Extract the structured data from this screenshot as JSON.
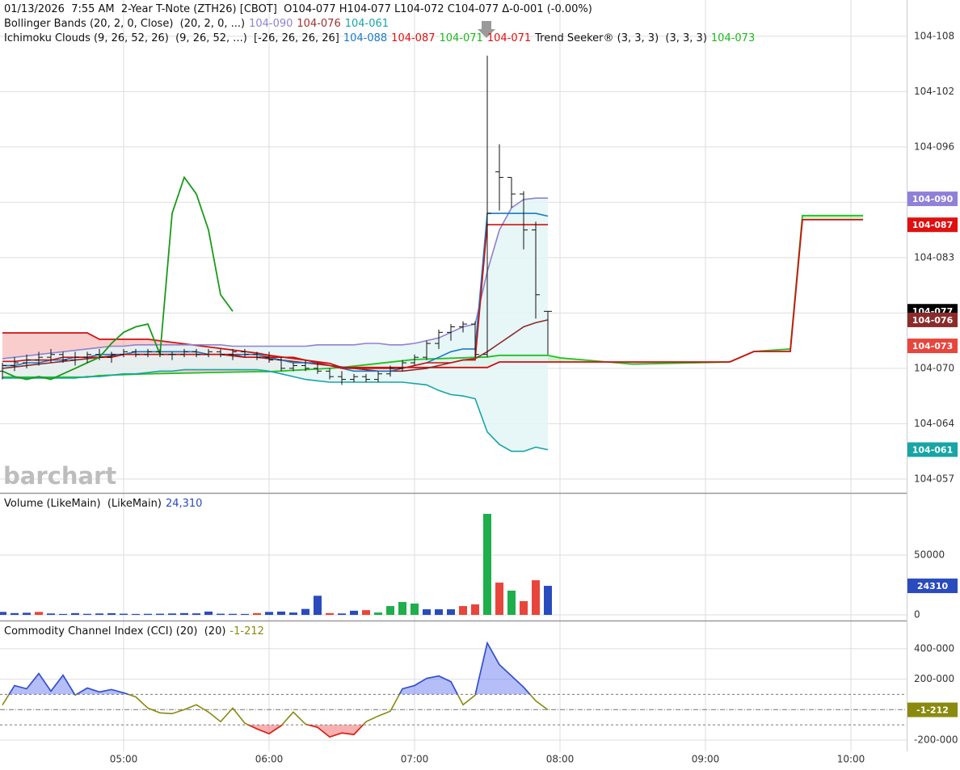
{
  "chart_data": [
    {
      "type": "ohlc",
      "legend": [
        [
          {
            "text": "01/13/2026  7:55 AM  2-Year T-Note (ZTH26) [CBOT]  O104-077 H104-077 L104-072 C104-077 Δ-0-001 (-0.00%)",
            "color": "#111111"
          }
        ],
        [
          {
            "text": "Bollinger Bands (20, 2, 0, Close)  (20, 2, 0, ...)",
            "color": "#111111"
          },
          {
            "text": "104-090",
            "color": "#8e82d0"
          },
          {
            "text": "104-076",
            "color": "#a03030"
          },
          {
            "text": "104-061",
            "color": "#17a5a5"
          }
        ],
        [
          {
            "text": "Ichimoku Clouds (9, 26, 52, 26)  (9, 26, 52, ...)  [-26, 26, 26, 26]",
            "color": "#111111"
          },
          {
            "text": "104-088",
            "color": "#1a7ac4"
          },
          {
            "text": "104-087",
            "color": "#e01010"
          },
          {
            "text": "104-071",
            "color": "#1cb81c"
          },
          {
            "text": "104-071",
            "color": "#e01010"
          },
          {
            "text": "Trend Seeker® (3, 3, 3)  (3, 3, 3)",
            "color": "#111111"
          },
          {
            "text": "104-073",
            "color": "#1cb81c"
          }
        ]
      ],
      "watermark": "barchart",
      "x": [
        "04:10",
        "04:15",
        "04:20",
        "04:25",
        "04:30",
        "04:35",
        "04:40",
        "04:45",
        "04:50",
        "04:55",
        "05:00",
        "05:05",
        "05:10",
        "05:15",
        "05:20",
        "05:25",
        "05:30",
        "05:35",
        "05:40",
        "05:45",
        "05:50",
        "05:55",
        "06:00",
        "06:05",
        "06:10",
        "06:15",
        "06:20",
        "06:25",
        "06:30",
        "06:35",
        "06:40",
        "06:45",
        "06:50",
        "06:55",
        "07:00",
        "07:05",
        "07:10",
        "07:15",
        "07:20",
        "07:25",
        "07:30",
        "07:35",
        "07:40",
        "07:45",
        "07:50",
        "07:55"
      ],
      "open": [
        104.219,
        104.221,
        104.222,
        104.223,
        104.224,
        104.225,
        104.223,
        104.224,
        104.225,
        104.224,
        104.225,
        104.226,
        104.225,
        104.226,
        104.225,
        104.225,
        104.226,
        104.225,
        104.226,
        104.225,
        104.226,
        104.225,
        104.224,
        104.223,
        104.22,
        104.221,
        104.22,
        104.219,
        104.217,
        104.216,
        104.217,
        104.216,
        104.218,
        104.22,
        104.222,
        104.224,
        104.229,
        104.233,
        104.235,
        104.236,
        104.225,
        104.291,
        104.289,
        104.283,
        104.27,
        104.2406
      ],
      "high": [
        104.222,
        104.224,
        104.225,
        104.226,
        104.227,
        104.226,
        104.226,
        104.226,
        104.227,
        104.226,
        104.227,
        104.227,
        104.227,
        104.227,
        104.226,
        104.227,
        104.227,
        104.227,
        104.227,
        104.227,
        104.227,
        104.226,
        104.226,
        104.224,
        104.222,
        104.223,
        104.222,
        104.22,
        104.219,
        104.218,
        104.218,
        104.219,
        104.221,
        104.223,
        104.225,
        104.23,
        104.234,
        104.236,
        104.237,
        104.237,
        104.333,
        104.301,
        104.289,
        104.284,
        104.273,
        104.2406
      ],
      "low": [
        104.216,
        104.219,
        104.22,
        104.221,
        104.222,
        104.222,
        104.221,
        104.222,
        104.223,
        104.222,
        104.224,
        104.224,
        104.224,
        104.224,
        104.223,
        104.224,
        104.224,
        104.224,
        104.224,
        104.223,
        104.224,
        104.223,
        104.222,
        104.219,
        104.219,
        104.219,
        104.218,
        104.216,
        104.214,
        104.215,
        104.215,
        104.215,
        104.217,
        104.219,
        104.221,
        104.223,
        104.227,
        104.23,
        104.233,
        104.224,
        104.224,
        104.277,
        104.278,
        104.263,
        104.238,
        104.225
      ],
      "close": [
        104.221,
        104.222,
        104.223,
        104.224,
        104.225,
        104.223,
        104.224,
        104.225,
        104.224,
        104.225,
        104.226,
        104.225,
        104.226,
        104.225,
        104.225,
        104.226,
        104.225,
        104.226,
        104.225,
        104.226,
        104.225,
        104.224,
        104.223,
        104.22,
        104.221,
        104.22,
        104.219,
        104.217,
        104.216,
        104.217,
        104.216,
        104.218,
        104.22,
        104.222,
        104.224,
        104.229,
        104.233,
        104.235,
        104.236,
        104.225,
        104.276,
        104.289,
        104.283,
        104.27,
        104.2466,
        104.2406
      ],
      "bar_color": "#111111",
      "series": [
        {
          "color": "#8e82d0",
          "values": [
            104.2235,
            104.224,
            104.2245,
            104.225,
            104.2255,
            104.226,
            104.2265,
            104.227,
            104.2275,
            104.228,
            104.228,
            104.2285,
            104.2285,
            104.2285,
            104.2285,
            104.2285,
            104.2285,
            104.2285,
            104.2285,
            104.228,
            104.228,
            104.228,
            104.228,
            104.228,
            104.228,
            104.228,
            104.2285,
            104.2285,
            104.2285,
            104.2285,
            104.229,
            104.229,
            104.2285,
            104.2285,
            104.229,
            104.23,
            104.231,
            104.233,
            104.235,
            104.236,
            104.255,
            104.27,
            104.278,
            104.281,
            104.2815,
            104.2815
          ]
        },
        {
          "color": "#8b2b2b",
          "values": [
            104.22,
            104.2205,
            104.221,
            104.2215,
            104.222,
            104.2225,
            104.223,
            104.2235,
            104.224,
            104.2245,
            104.225,
            104.225,
            104.225,
            104.225,
            104.225,
            104.225,
            104.225,
            104.225,
            104.225,
            104.2245,
            104.224,
            104.224,
            104.2235,
            104.223,
            104.2225,
            104.222,
            104.2215,
            104.221,
            104.2205,
            104.22,
            104.2195,
            104.219,
            104.219,
            104.219,
            104.2195,
            104.22,
            104.221,
            104.222,
            104.223,
            104.2235,
            104.226,
            104.229,
            104.232,
            104.235,
            104.2365,
            104.2375
          ]
        },
        {
          "color": "#17a5a5",
          "values": [
            104.2165,
            104.2165,
            104.2165,
            104.2165,
            104.2165,
            104.2165,
            104.2165,
            104.217,
            104.217,
            104.2175,
            104.218,
            104.218,
            104.2185,
            104.219,
            104.219,
            104.2195,
            104.2195,
            104.2195,
            104.2195,
            104.2195,
            104.2195,
            104.2195,
            104.219,
            104.218,
            104.217,
            104.216,
            104.2155,
            104.215,
            104.215,
            104.215,
            104.215,
            104.215,
            104.215,
            104.215,
            104.2145,
            104.214,
            104.212,
            104.2105,
            104.21,
            104.209,
            104.197,
            104.1925,
            104.19,
            104.19,
            104.1915,
            104.1906
          ]
        },
        {
          "color": "#1a7ac4",
          "values": [
            104.221,
            104.221,
            104.222,
            104.222,
            104.223,
            104.223,
            104.224,
            104.224,
            104.225,
            104.225,
            104.225,
            104.226,
            104.226,
            104.226,
            104.226,
            104.226,
            104.226,
            104.225,
            104.225,
            104.225,
            104.225,
            104.225,
            104.224,
            104.223,
            104.222,
            104.222,
            104.222,
            104.221,
            104.22,
            104.219,
            104.219,
            104.219,
            104.219,
            104.22,
            104.221,
            104.222,
            104.224,
            104.226,
            104.227,
            104.227,
            104.276,
            104.276,
            104.276,
            104.276,
            104.276,
            104.275
          ]
        },
        {
          "color": "#d01010",
          "values": [
            104.2225,
            104.2225,
            104.223,
            104.223,
            104.223,
            104.224,
            104.224,
            104.224,
            104.224,
            104.224,
            104.225,
            104.225,
            104.225,
            104.225,
            104.225,
            104.225,
            104.225,
            104.225,
            104.225,
            104.225,
            104.224,
            104.224,
            104.224,
            104.224,
            104.224,
            104.223,
            104.222,
            104.221,
            104.22,
            104.22,
            104.22,
            104.22,
            104.22,
            104.22,
            104.221,
            104.222,
            104.222,
            104.222,
            104.223,
            104.223,
            104.2719,
            104.2719,
            104.2719,
            104.2719,
            104.2719,
            104.2719
          ]
        }
      ],
      "band_fill": "#e3f4f4",
      "lag": 26,
      "lag_color": "#1a9a1a",
      "cloud": {
        "x": [
          "04:10",
          "04:45",
          "04:50",
          "05:10",
          "05:55",
          "06:00",
          "06:25",
          "06:30",
          "07:00",
          "07:30",
          "07:35",
          "07:55",
          "08:00",
          "08:30",
          "09:10",
          "09:20",
          "09:35",
          "09:40",
          "10:05"
        ],
        "a": [
          104.2168,
          104.2168,
          104.2174,
          104.218,
          104.2188,
          104.2188,
          104.22,
          104.2203,
          104.2232,
          104.2241,
          104.2247,
          104.2247,
          104.2238,
          104.2215,
          104.2223,
          104.2261,
          104.227,
          104.2752,
          104.2752
        ],
        "b": [
          104.2328,
          104.2328,
          104.2305,
          104.2305,
          104.2255,
          104.2247,
          104.2218,
          104.2203,
          104.2203,
          104.2203,
          104.2223,
          104.2223,
          104.2223,
          104.2223,
          104.2223,
          104.2261,
          104.2261,
          104.2737,
          104.2737
        ],
        "a_color": "#22c022",
        "b_color": "#d01010",
        "up_fill": "rgba(60,210,60,0.28)",
        "down_fill": "rgba(240,90,90,0.3)"
      },
      "tags": [
        {
          "value": 104.28125,
          "label": "104-090",
          "color": "#9080d8"
        },
        {
          "value": 104.271875,
          "label": "104-087",
          "color": "#e01010"
        },
        {
          "value": 104.240625,
          "label": "104-077",
          "color": "#000000"
        },
        {
          "value": 104.2375,
          "label": "104-076",
          "color": "#8b2b2b"
        },
        {
          "value": 104.228125,
          "label": "104-073",
          "color": "#e8453c"
        },
        {
          "value": 104.190625,
          "label": "104-061",
          "color": "#17a5a5"
        }
      ],
      "xlim": [
        "04:09",
        "10:23"
      ],
      "ylim": [
        104.175,
        104.3531
      ],
      "yticks": [
        {
          "value": 104.18,
          "label": "104-057"
        },
        {
          "value": 104.2,
          "label": "104-064"
        },
        {
          "value": 104.22,
          "label": "104-070"
        },
        {
          "value": 104.24,
          "label": "104-077"
        },
        {
          "value": 104.26,
          "label": "104-083"
        },
        {
          "value": 104.28,
          "label": "104-090"
        },
        {
          "value": 104.3,
          "label": "104-096"
        },
        {
          "value": 104.32,
          "label": "104-102"
        },
        {
          "value": 104.34,
          "label": "104-108"
        }
      ],
      "grid": true
    },
    {
      "type": "bar",
      "legend": [
        [
          {
            "text": "Volume (LikeMain)  (LikeMain)",
            "color": "#111111"
          },
          {
            "text": "24,310",
            "color": "#2a4bbd"
          }
        ]
      ],
      "x": [
        "04:10",
        "04:15",
        "04:20",
        "04:25",
        "04:30",
        "04:35",
        "04:40",
        "04:45",
        "04:50",
        "04:55",
        "05:00",
        "05:05",
        "05:10",
        "05:15",
        "05:20",
        "05:25",
        "05:30",
        "05:35",
        "05:40",
        "05:45",
        "05:50",
        "05:55",
        "06:00",
        "06:05",
        "06:10",
        "06:15",
        "06:20",
        "06:25",
        "06:30",
        "06:35",
        "06:40",
        "06:45",
        "06:50",
        "06:55",
        "07:00",
        "07:05",
        "07:10",
        "07:15",
        "07:20",
        "07:25",
        "07:30",
        "07:35",
        "07:40",
        "07:45",
        "07:50",
        "07:55"
      ],
      "values": [
        2500,
        1500,
        1800,
        2500,
        1200,
        800,
        1500,
        900,
        1200,
        1400,
        1000,
        800,
        900,
        1000,
        1200,
        1500,
        1300,
        2800,
        1000,
        900,
        800,
        1500,
        2500,
        2800,
        2000,
        5000,
        16000,
        1500,
        1200,
        3500,
        4000,
        2000,
        7400,
        10800,
        9500,
        4700,
        4700,
        4700,
        7400,
        8800,
        84500,
        27000,
        20300,
        11500,
        29000,
        24310
      ],
      "bar_colors": [
        "#2a4bbd",
        "#2a4bbd",
        "#2a4bbd",
        "#e8453c",
        "#2a4bbd",
        "#2a4bbd",
        "#2a4bbd",
        "#2a4bbd",
        "#2a4bbd",
        "#2a4bbd",
        "#2a4bbd",
        "#2a4bbd",
        "#2a4bbd",
        "#2a4bbd",
        "#2a4bbd",
        "#2a4bbd",
        "#2a4bbd",
        "#2a4bbd",
        "#2a4bbd",
        "#2a4bbd",
        "#2a4bbd",
        "#e8453c",
        "#2a4bbd",
        "#2a4bbd",
        "#2a4bbd",
        "#2a4bbd",
        "#2a4bbd",
        "#e8453c",
        "#2a4bbd",
        "#2a4bbd",
        "#e8453c",
        "#1fae4c",
        "#1fae4c",
        "#1fae4c",
        "#1fae4c",
        "#2a4bbd",
        "#2a4bbd",
        "#2a4bbd",
        "#e8453c",
        "#e8453c",
        "#1fae4c",
        "#e8453c",
        "#1fae4c",
        "#e8453c",
        "#e8453c",
        "#2a4bbd"
      ],
      "tags": [
        {
          "value": 24310,
          "color": "#2a4bbd"
        }
      ],
      "xlim": [
        "04:09",
        "10:23"
      ],
      "ylim": [
        -4700,
        100700
      ],
      "yticks": [
        0,
        50000
      ],
      "grid": true
    },
    {
      "type": "line",
      "legend": [
        [
          {
            "text": "Commodity Channel Index (CCI) (20)  (20)",
            "color": "#111111"
          },
          {
            "text": "-1-212",
            "color": "#8a8a10"
          }
        ]
      ],
      "x": [
        "04:10",
        "04:15",
        "04:20",
        "04:25",
        "04:30",
        "04:35",
        "04:40",
        "04:45",
        "04:50",
        "04:55",
        "05:00",
        "05:05",
        "05:10",
        "05:15",
        "05:20",
        "05:25",
        "05:30",
        "05:35",
        "05:40",
        "05:45",
        "05:50",
        "05:55",
        "06:00",
        "06:05",
        "06:10",
        "06:15",
        "06:20",
        "06:25",
        "06:30",
        "06:35",
        "06:40",
        "06:45",
        "06:50",
        "06:55",
        "07:00",
        "07:05",
        "07:10",
        "07:15",
        "07:20",
        "07:25",
        "07:30",
        "07:35",
        "07:40",
        "07:45",
        "07:50",
        "07:55"
      ],
      "values": [
        30,
        158,
        137,
        237,
        121,
        226,
        95,
        142,
        116,
        132,
        110,
        84,
        10,
        -21,
        -26,
        0,
        32,
        -16,
        -79,
        10,
        -89,
        -126,
        -158,
        -105,
        -16,
        -95,
        -116,
        -179,
        -153,
        -163,
        -79,
        -42,
        -10,
        137,
        158,
        205,
        221,
        184,
        32,
        95,
        437,
        295,
        221,
        147,
        58,
        -1.212
      ],
      "color": "#8a8a10",
      "upper_level": 100,
      "lower_level": -100,
      "zero_line": true,
      "upper_color": "#2f4fe0",
      "lower_color": "#e02020",
      "upper_fill": "rgba(90,110,240,0.45)",
      "lower_fill": "rgba(240,80,80,0.45)",
      "tags": [
        {
          "value": -1.212,
          "label": "-1-212",
          "color": "#8a8a10"
        }
      ],
      "xlim": [
        "04:09",
        "10:23"
      ],
      "ylim": [
        -274,
        574
      ],
      "yticks": [
        {
          "value": 400,
          "label": "400-000"
        },
        {
          "value": 200,
          "label": "200-000"
        },
        {
          "value": -200,
          "label": "-200-000"
        }
      ],
      "xticks": [
        "05:00",
        "06:00",
        "07:00",
        "08:00",
        "09:00",
        "10:00"
      ],
      "grid": true
    }
  ]
}
